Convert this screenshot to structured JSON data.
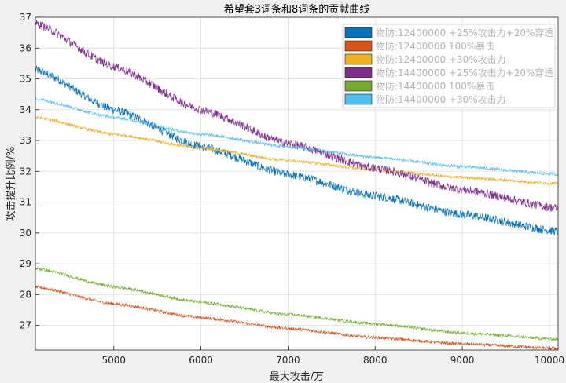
{
  "chart_data": {
    "type": "line",
    "title": "希望套3词条和8词条的贡献曲线",
    "xlabel": "最大攻击/万",
    "ylabel": "攻击提升比例/%",
    "xlim": [
      4100,
      10100
    ],
    "ylim": [
      26.2,
      37
    ],
    "xticks": [
      5000,
      6000,
      7000,
      8000,
      9000,
      10000
    ],
    "yticks": [
      27,
      28,
      29,
      30,
      31,
      32,
      33,
      34,
      35,
      36,
      37
    ],
    "grid": true,
    "legend_position": "top-right",
    "series": [
      {
        "name": "物防:12400000 +25%攻击力+20%穿透",
        "color": "#0072bd",
        "noise": 0.14,
        "x": [
          4100,
          5000,
          6000,
          7000,
          8000,
          9000,
          10100
        ],
        "y": [
          35.3,
          34.0,
          32.8,
          31.9,
          31.2,
          30.6,
          30.05
        ]
      },
      {
        "name": "物防:12400000 100%暴击",
        "color": "#d95319",
        "noise": 0.05,
        "x": [
          4100,
          5000,
          6000,
          7000,
          8000,
          9000,
          10100
        ],
        "y": [
          28.25,
          27.7,
          27.25,
          26.9,
          26.6,
          26.4,
          26.25
        ]
      },
      {
        "name": "物防:12400000 +30%攻击力",
        "color": "#edb120",
        "noise": 0.05,
        "x": [
          4100,
          5000,
          6000,
          7000,
          8000,
          9000,
          10100
        ],
        "y": [
          33.75,
          33.2,
          32.75,
          32.35,
          32.05,
          31.8,
          31.6
        ]
      },
      {
        "name": "物防:14400000 +25%攻击力+20%穿透",
        "color": "#7e2f8e",
        "noise": 0.14,
        "x": [
          4100,
          5000,
          6000,
          7000,
          8000,
          9000,
          10100
        ],
        "y": [
          36.8,
          35.4,
          34.0,
          32.9,
          32.1,
          31.4,
          30.8
        ]
      },
      {
        "name": "物防:14400000 100%暴击",
        "color": "#77ac30",
        "noise": 0.05,
        "x": [
          4100,
          5000,
          6000,
          7000,
          8000,
          9000,
          10100
        ],
        "y": [
          28.85,
          28.25,
          27.75,
          27.35,
          27.05,
          26.75,
          26.55
        ]
      },
      {
        "name": "物防:14400000 +30%攻击力",
        "color": "#4dbeee",
        "noise": 0.05,
        "x": [
          4100,
          5000,
          6000,
          7000,
          8000,
          9000,
          10100
        ],
        "y": [
          34.35,
          33.75,
          33.2,
          32.8,
          32.45,
          32.15,
          31.9
        ]
      }
    ]
  },
  "colors": {
    "figure_background": "#f0f0f0",
    "axes_background": "#ffffff",
    "grid": "#e4e4e4",
    "axis": "#262626"
  }
}
